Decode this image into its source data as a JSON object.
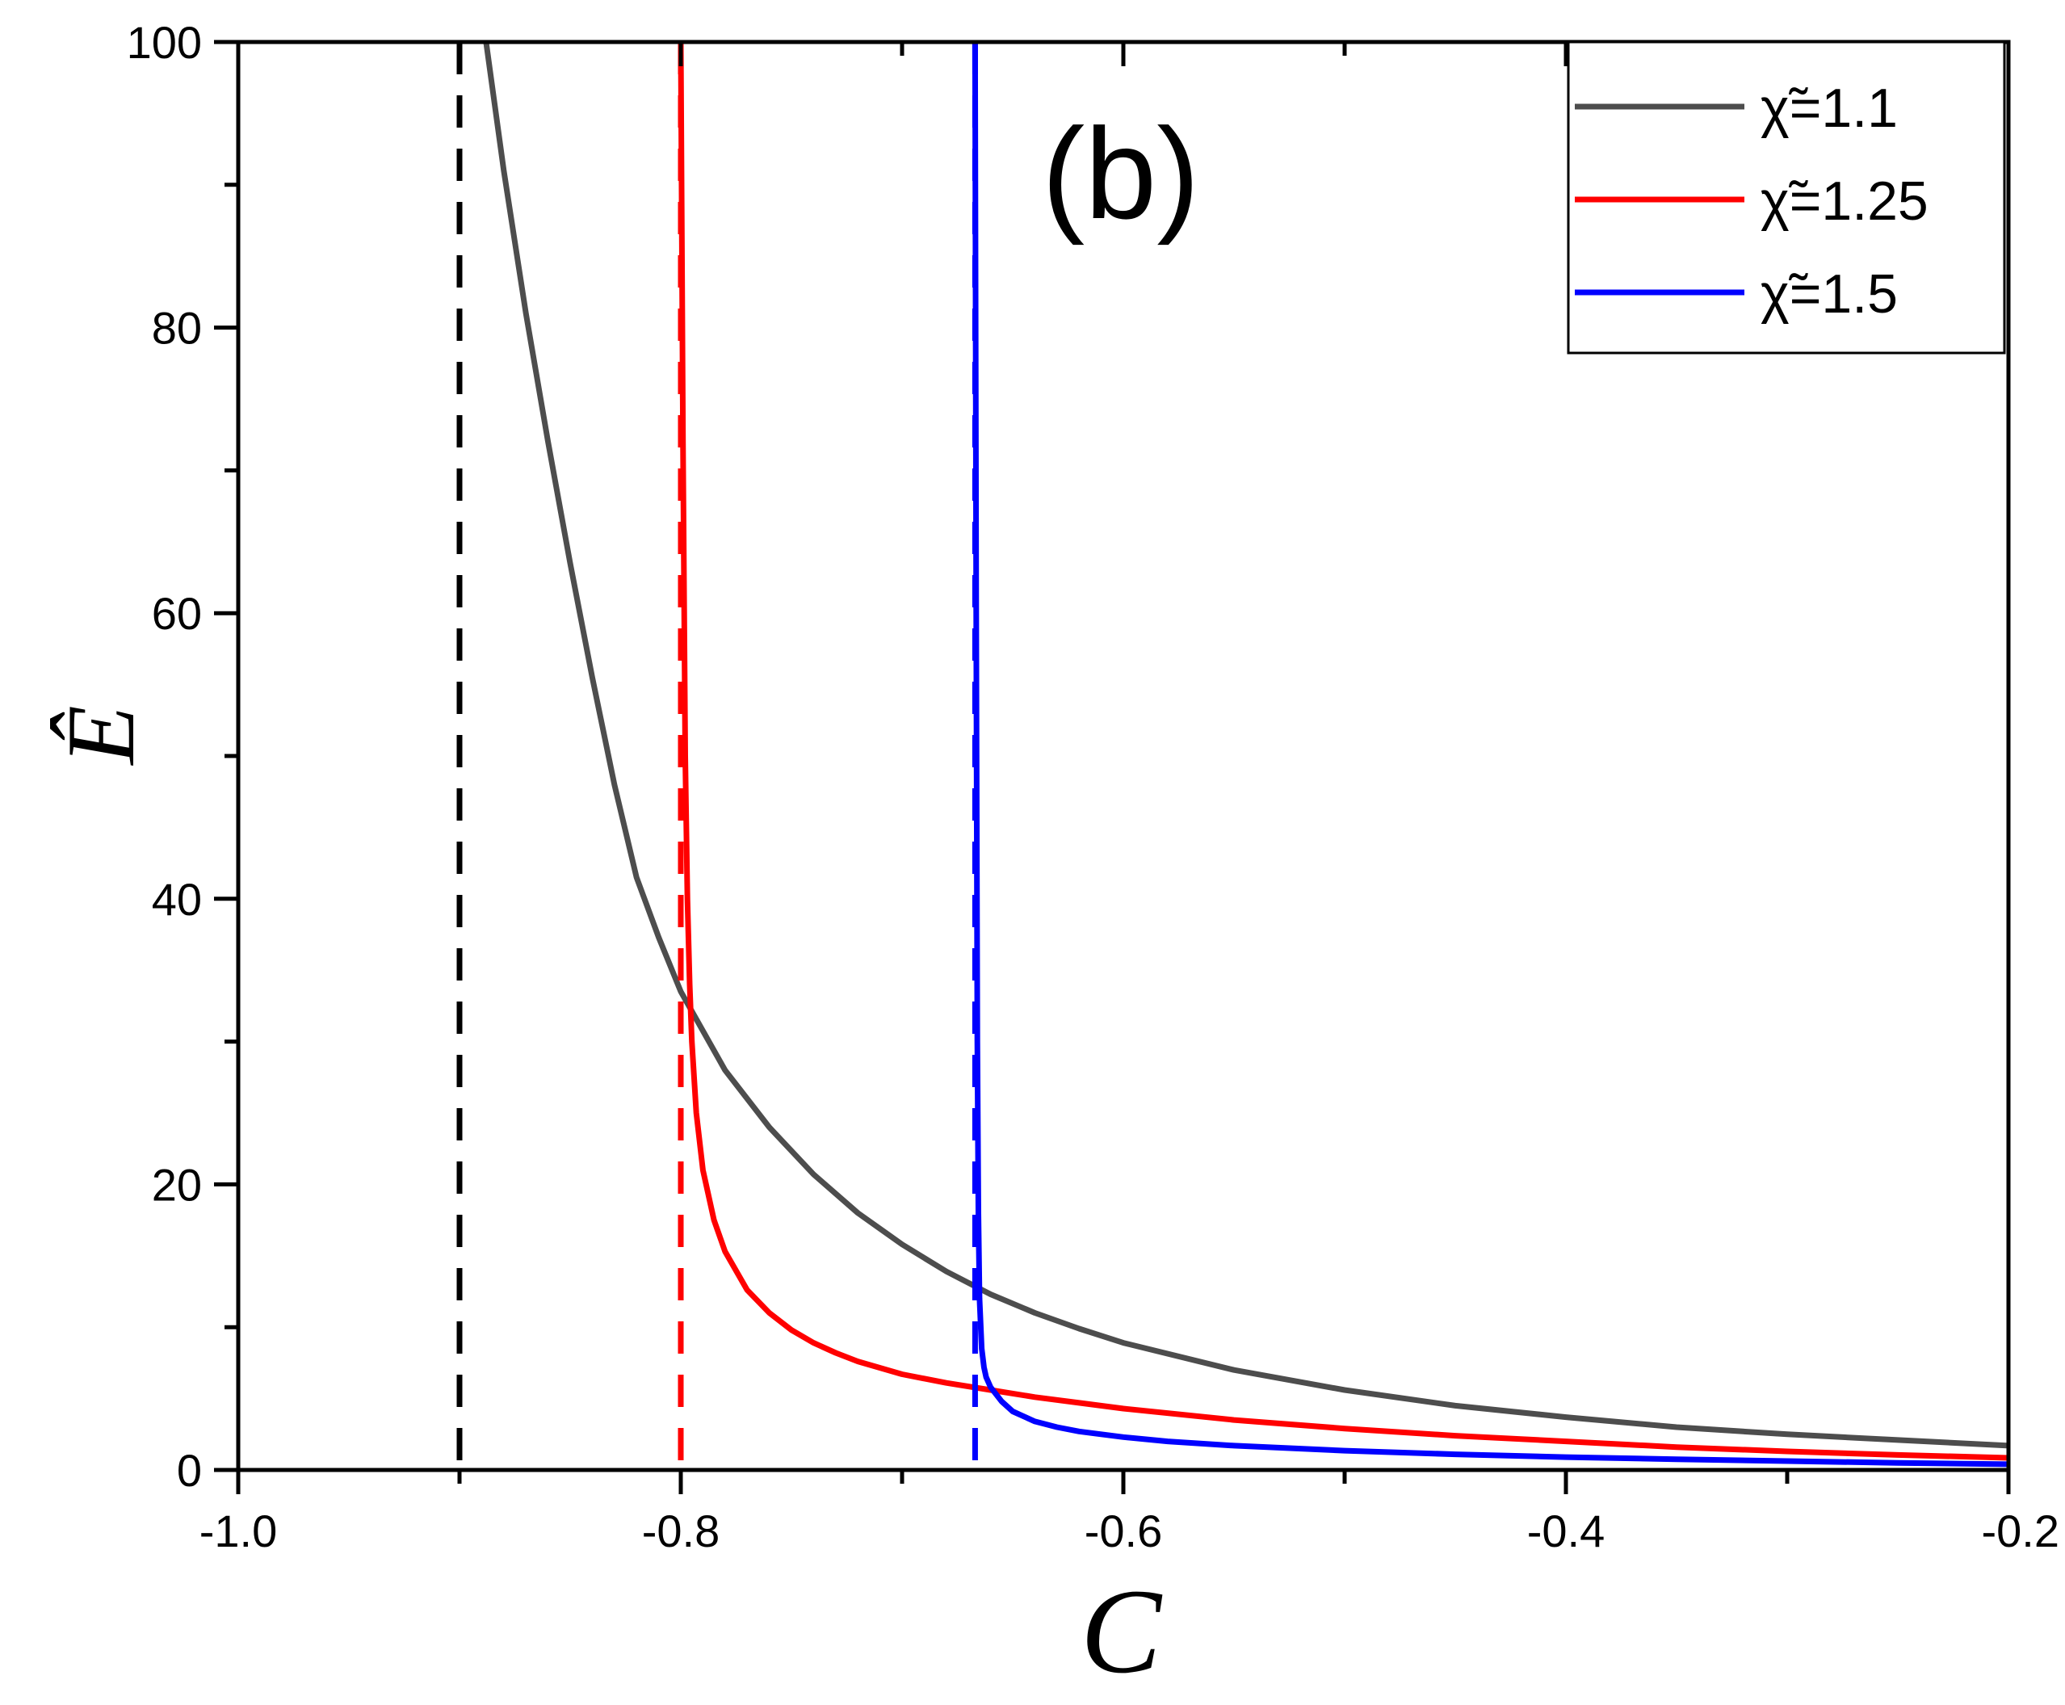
{
  "chart_data": {
    "type": "line",
    "panel_label": "(b)",
    "xlabel": "C",
    "ylabel": "Ê",
    "xlim": [
      -1.0,
      -0.2
    ],
    "ylim": [
      0,
      100
    ],
    "x_ticks": [
      "-1.0",
      "-0.8",
      "-0.6",
      "-0.4",
      "-0.2"
    ],
    "y_ticks": [
      "0",
      "20",
      "40",
      "60",
      "80",
      "100"
    ],
    "x_tick_values": [
      -1.0,
      -0.8,
      -0.6,
      -0.4,
      -0.2
    ],
    "y_tick_values": [
      0,
      20,
      40,
      60,
      80,
      100
    ],
    "x_minor_ticks": [
      -0.9,
      -0.7,
      -0.5,
      -0.3
    ],
    "y_minor_ticks": [
      10,
      30,
      50,
      70,
      90
    ],
    "legend_position": "top-right",
    "series": [
      {
        "name": "χ̃=1.1",
        "color": "#4d4d4d",
        "asymptote": -0.9,
        "asymptote_color": "#000000",
        "x": [
          -0.888,
          -0.88,
          -0.87,
          -0.86,
          -0.85,
          -0.84,
          -0.83,
          -0.82,
          -0.81,
          -0.8,
          -0.78,
          -0.76,
          -0.74,
          -0.72,
          -0.7,
          -0.68,
          -0.66,
          -0.64,
          -0.62,
          -0.6,
          -0.55,
          -0.5,
          -0.45,
          -0.4,
          -0.35,
          -0.3,
          -0.25,
          -0.2
        ],
        "y": [
          100,
          91,
          81,
          72,
          63.5,
          55.5,
          48,
          41.5,
          37.3,
          33.5,
          28,
          24,
          20.7,
          18,
          15.8,
          13.9,
          12.3,
          11,
          9.9,
          8.9,
          7,
          5.6,
          4.5,
          3.7,
          3,
          2.5,
          2.1,
          1.7
        ]
      },
      {
        "name": "χ̃=1.25",
        "color": "#ff0000",
        "asymptote": -0.8,
        "asymptote_color": "#ff0000",
        "x": [
          -0.8,
          -0.799,
          -0.798,
          -0.797,
          -0.796,
          -0.795,
          -0.793,
          -0.79,
          -0.785,
          -0.78,
          -0.77,
          -0.76,
          -0.75,
          -0.74,
          -0.73,
          -0.72,
          -0.7,
          -0.68,
          -0.66,
          -0.64,
          -0.62,
          -0.6,
          -0.55,
          -0.5,
          -0.45,
          -0.4,
          -0.35,
          -0.3,
          -0.25,
          -0.2
        ],
        "y": [
          100,
          72,
          50,
          40,
          34,
          30,
          25,
          21,
          17.5,
          15.3,
          12.6,
          11,
          9.8,
          8.9,
          8.2,
          7.6,
          6.7,
          6.1,
          5.6,
          5.1,
          4.7,
          4.3,
          3.5,
          2.9,
          2.4,
          2,
          1.6,
          1.3,
          1.05,
          0.85
        ]
      },
      {
        "name": "χ̃=1.5",
        "color": "#0000ff",
        "asymptote": -0.667,
        "asymptote_color": "#0000ff",
        "x": [
          -0.667,
          -0.6665,
          -0.666,
          -0.6655,
          -0.665,
          -0.664,
          -0.663,
          -0.662,
          -0.66,
          -0.655,
          -0.65,
          -0.64,
          -0.63,
          -0.62,
          -0.6,
          -0.58,
          -0.55,
          -0.5,
          -0.45,
          -0.4,
          -0.35,
          -0.3,
          -0.25,
          -0.2
        ],
        "y": [
          100,
          60,
          30,
          18,
          12,
          8.5,
          7.2,
          6.5,
          5.8,
          4.8,
          4.1,
          3.4,
          3,
          2.7,
          2.3,
          2,
          1.7,
          1.35,
          1.1,
          0.9,
          0.75,
          0.62,
          0.5,
          0.4
        ]
      }
    ]
  }
}
